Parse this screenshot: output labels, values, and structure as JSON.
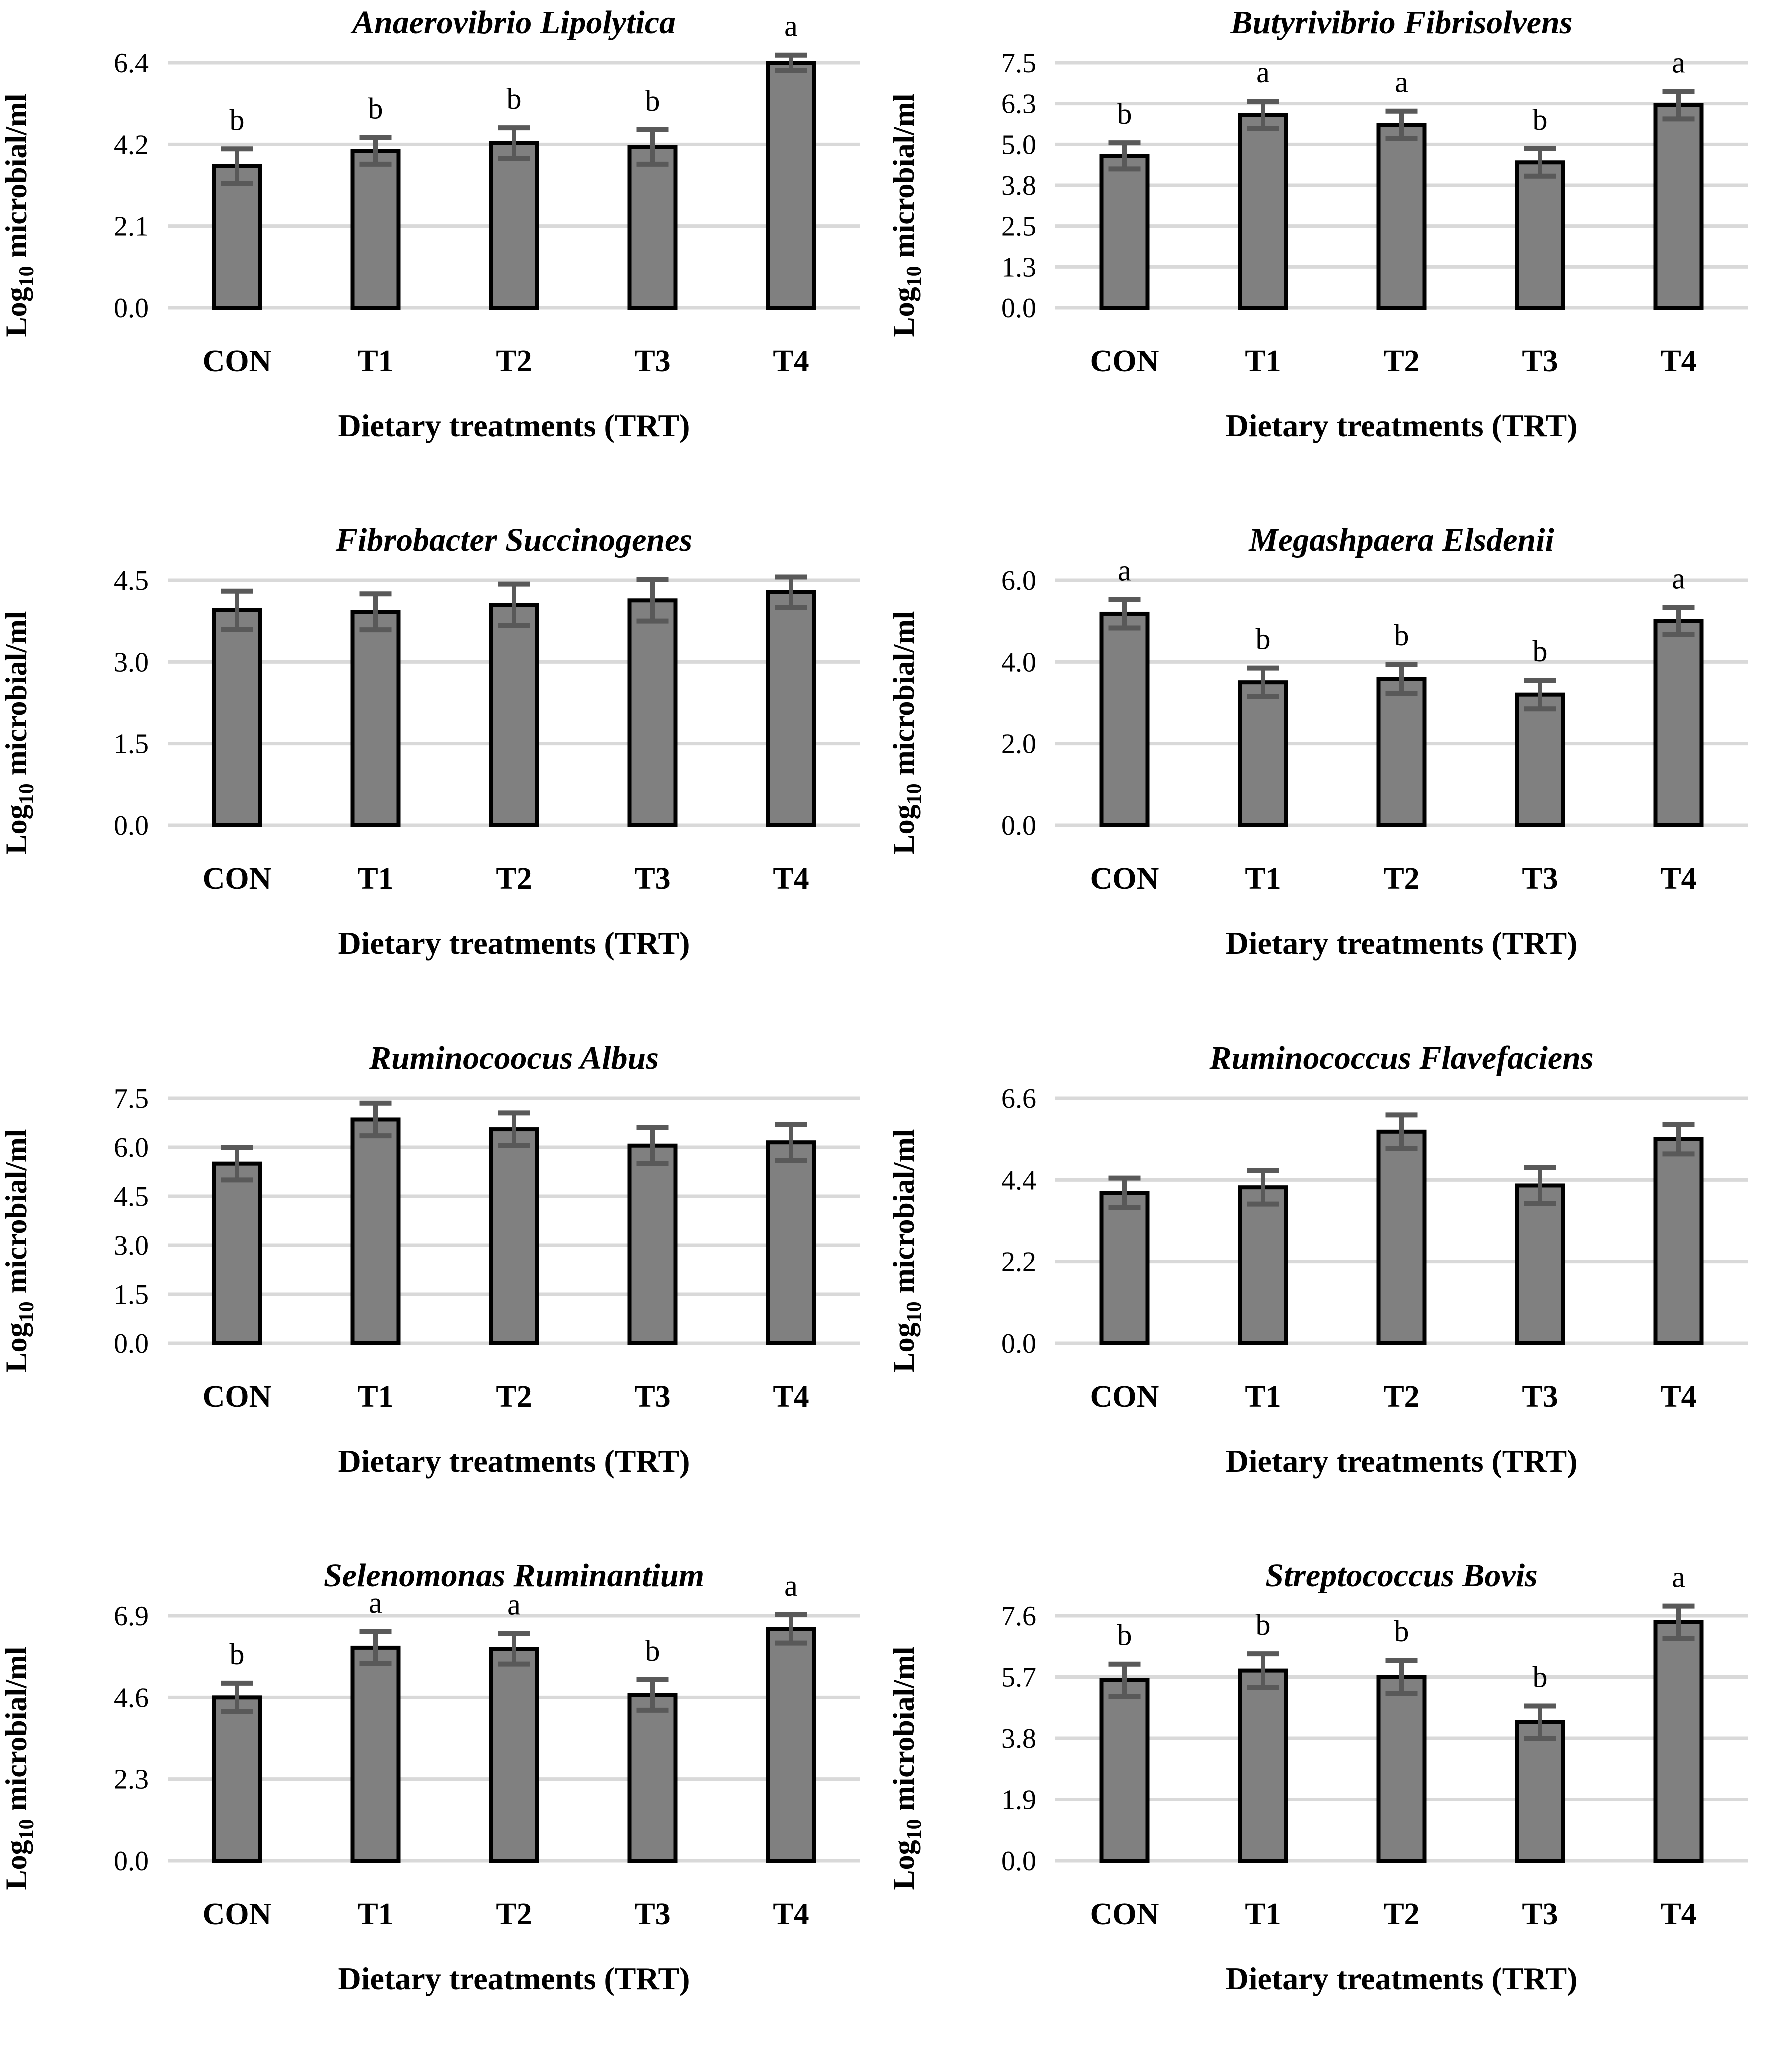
{
  "page": {
    "background": "#FFFFFF"
  },
  "colors": {
    "bar_fill": "#808080",
    "bar_stroke": "#000000",
    "error_bar": "#595959",
    "gridline": "#D9D9D9",
    "text": "#000000"
  },
  "chart_data": [
    {
      "type": "bar",
      "title": "Anaerovibrio Lipolytica",
      "xlabel": "Dietary treatments (TRT)",
      "ylabel_prefix": "Log",
      "ylabel_sub": "10",
      "ylabel_suffix": "microbial/ml",
      "categories": [
        "CON",
        "T1",
        "T2",
        "T3",
        "T4"
      ],
      "values": [
        3.7,
        4.1,
        4.3,
        4.2,
        6.4
      ],
      "errors": [
        0.45,
        0.35,
        0.4,
        0.45,
        0.2
      ],
      "sig_letters": [
        "b",
        "b",
        "b",
        "b",
        "a"
      ],
      "ytick_labels": [
        "0.0",
        "2.1",
        "4.2",
        "6.4"
      ],
      "ymax": 6.4,
      "ylim": [
        0,
        6.4
      ],
      "grid": true,
      "legend": "none"
    },
    {
      "type": "bar",
      "title": "Butyrivibrio Fibrisolvens",
      "xlabel": "Dietary treatments (TRT)",
      "ylabel_prefix": "Log",
      "ylabel_sub": "10",
      "ylabel_suffix": "microbial/ml",
      "categories": [
        "CON",
        "T1",
        "T2",
        "T3",
        "T4"
      ],
      "values": [
        4.65,
        5.9,
        5.6,
        4.45,
        6.2
      ],
      "errors": [
        0.4,
        0.42,
        0.42,
        0.42,
        0.42
      ],
      "sig_letters": [
        "b",
        "a",
        "a",
        "b",
        "a"
      ],
      "ytick_labels": [
        "0.0",
        "1.3",
        "2.5",
        "3.8",
        "5.0",
        "6.3",
        "7.5"
      ],
      "ymax": 7.5,
      "ylim": [
        0,
        7.5
      ],
      "grid": true,
      "legend": "none"
    },
    {
      "type": "bar",
      "title": "Fibrobacter Succinogenes",
      "xlabel": "Dietary treatments (TRT)",
      "ylabel_prefix": "Log",
      "ylabel_sub": "10",
      "ylabel_suffix": "microbial/ml",
      "categories": [
        "CON",
        "T1",
        "T2",
        "T3",
        "T4"
      ],
      "values": [
        3.95,
        3.92,
        4.05,
        4.13,
        4.28
      ],
      "errors": [
        0.35,
        0.33,
        0.38,
        0.38,
        0.28
      ],
      "sig_letters": [
        "",
        "",
        "",
        "",
        ""
      ],
      "ytick_labels": [
        "0.0",
        "1.5",
        "3.0",
        "4.5"
      ],
      "ymax": 4.5,
      "ylim": [
        0,
        4.5
      ],
      "grid": true,
      "legend": "none"
    },
    {
      "type": "bar",
      "title": "Megashpaera Elsdenii",
      "xlabel": "Dietary treatments (TRT)",
      "ylabel_prefix": "Log",
      "ylabel_sub": "10",
      "ylabel_suffix": "microbial/ml",
      "categories": [
        "CON",
        "T1",
        "T2",
        "T3",
        "T4"
      ],
      "values": [
        5.18,
        3.5,
        3.58,
        3.2,
        5.0
      ],
      "errors": [
        0.35,
        0.35,
        0.36,
        0.35,
        0.33
      ],
      "sig_letters": [
        "a",
        "b",
        "b",
        "b",
        "a"
      ],
      "ytick_labels": [
        "0.0",
        "2.0",
        "4.0",
        "6.0"
      ],
      "ymax": 6.0,
      "ylim": [
        0,
        6.0
      ],
      "grid": true,
      "legend": "none"
    },
    {
      "type": "bar",
      "title": "Ruminocoocus Albus",
      "xlabel": "Dietary treatments (TRT)",
      "ylabel_prefix": "Log",
      "ylabel_sub": "10",
      "ylabel_suffix": "microbial/ml",
      "categories": [
        "CON",
        "T1",
        "T2",
        "T3",
        "T4"
      ],
      "values": [
        5.5,
        6.85,
        6.55,
        6.05,
        6.15
      ],
      "errors": [
        0.5,
        0.5,
        0.5,
        0.55,
        0.55
      ],
      "sig_letters": [
        "",
        "",
        "",
        "",
        ""
      ],
      "ytick_labels": [
        "0.0",
        "1.5",
        "3.0",
        "4.5",
        "6.0",
        "7.5"
      ],
      "ymax": 7.5,
      "ylim": [
        0,
        7.5
      ],
      "grid": true,
      "legend": "none"
    },
    {
      "type": "bar",
      "title": "Ruminococcus Flavefaciens",
      "xlabel": "Dietary treatments (TRT)",
      "ylabel_prefix": "Log",
      "ylabel_sub": "10",
      "ylabel_suffix": "microbial/ml",
      "categories": [
        "CON",
        "T1",
        "T2",
        "T3",
        "T4"
      ],
      "values": [
        4.05,
        4.2,
        5.7,
        4.25,
        5.5
      ],
      "errors": [
        0.4,
        0.45,
        0.45,
        0.48,
        0.4
      ],
      "sig_letters": [
        "",
        "",
        "",
        "",
        ""
      ],
      "ytick_labels": [
        "0.0",
        "2.2",
        "4.4",
        "6.6"
      ],
      "ymax": 6.6,
      "ylim": [
        0,
        6.6
      ],
      "grid": true,
      "legend": "none"
    },
    {
      "type": "bar",
      "title": "Selenomonas Ruminantium",
      "xlabel": "Dietary treatments (TRT)",
      "ylabel_prefix": "Log",
      "ylabel_sub": "10",
      "ylabel_suffix": "microbial/ml",
      "categories": [
        "CON",
        "T1",
        "T2",
        "T3",
        "T4"
      ],
      "values": [
        4.6,
        6.0,
        5.97,
        4.67,
        6.53
      ],
      "errors": [
        0.4,
        0.45,
        0.43,
        0.43,
        0.4
      ],
      "sig_letters": [
        "b",
        "a",
        "a",
        "b",
        "a"
      ],
      "ytick_labels": [
        "0.0",
        "2.3",
        "4.6",
        "6.9"
      ],
      "ymax": 6.9,
      "ylim": [
        0,
        6.9
      ],
      "grid": true,
      "legend": "none"
    },
    {
      "type": "bar",
      "title": "Streptococcus Bovis",
      "xlabel": "Dietary treatments (TRT)",
      "ylabel_prefix": "Log",
      "ylabel_sub": "10",
      "ylabel_suffix": "microbial/ml",
      "categories": [
        "CON",
        "T1",
        "T2",
        "T3",
        "T4"
      ],
      "values": [
        5.6,
        5.9,
        5.7,
        4.3,
        7.4
      ],
      "errors": [
        0.5,
        0.52,
        0.52,
        0.5,
        0.5
      ],
      "sig_letters": [
        "b",
        "b",
        "b",
        "b",
        "a"
      ],
      "ytick_labels": [
        "0.0",
        "1.9",
        "3.8",
        "5.7",
        "7.6"
      ],
      "ymax": 7.6,
      "ylim": [
        0,
        7.6
      ],
      "grid": true,
      "legend": "none"
    }
  ]
}
